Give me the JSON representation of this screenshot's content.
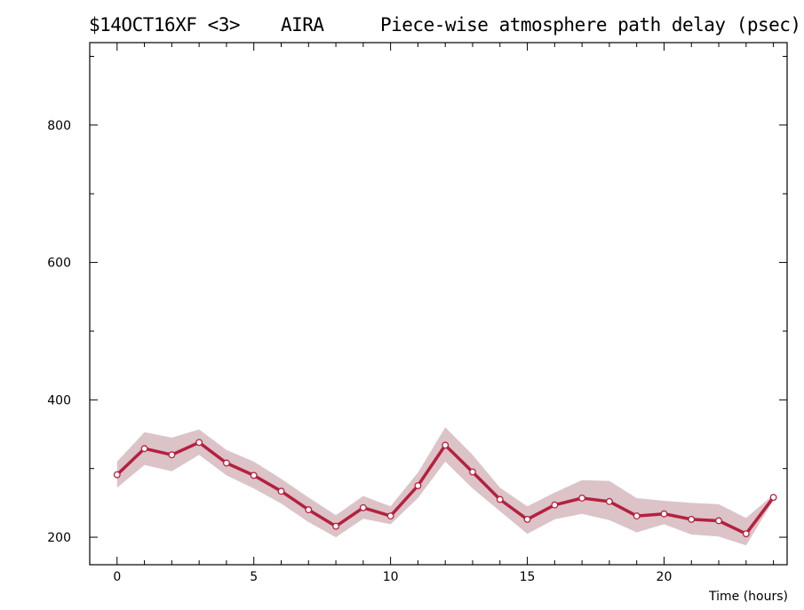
{
  "header": {
    "experiment": "$14OCT16XF <3>",
    "station": "AIRA",
    "plot_title": "Piece-wise atmosphere path delay (psec)"
  },
  "colors": {
    "line": "#b5203e",
    "band": "#dbc3c8",
    "axis": "#000000",
    "marker_fill": "#ffffff"
  },
  "chart_data": {
    "type": "line",
    "title": "Piece-wise atmosphere path delay (psec)",
    "xlabel": "Time (hours)",
    "ylabel": "",
    "xlim": [
      -1,
      24.5
    ],
    "ylim": [
      160,
      920
    ],
    "x_ticks": [
      0,
      5,
      10,
      15,
      20
    ],
    "y_ticks": [
      200,
      400,
      600,
      800
    ],
    "grid": false,
    "series": [
      {
        "x": [
          0,
          1,
          2,
          3,
          4,
          5,
          6,
          7,
          8,
          9,
          10,
          11,
          12,
          13,
          14,
          15,
          16,
          17,
          18,
          19,
          20,
          21,
          22,
          23,
          24
        ],
        "values": [
          291,
          329,
          320,
          338,
          308,
          290,
          267,
          240,
          216,
          243,
          231,
          275,
          334,
          295,
          255,
          226,
          247,
          257,
          252,
          231,
          234,
          226,
          224,
          205,
          258
        ],
        "upper": [
          310,
          353,
          345,
          357,
          327,
          310,
          285,
          258,
          232,
          260,
          245,
          294,
          360,
          320,
          272,
          245,
          265,
          283,
          282,
          257,
          253,
          250,
          248,
          228,
          262
        ],
        "lower": [
          272,
          305,
          296,
          320,
          290,
          271,
          249,
          222,
          200,
          227,
          219,
          257,
          310,
          271,
          238,
          205,
          226,
          234,
          225,
          207,
          219,
          204,
          201,
          188,
          254
        ]
      }
    ]
  }
}
